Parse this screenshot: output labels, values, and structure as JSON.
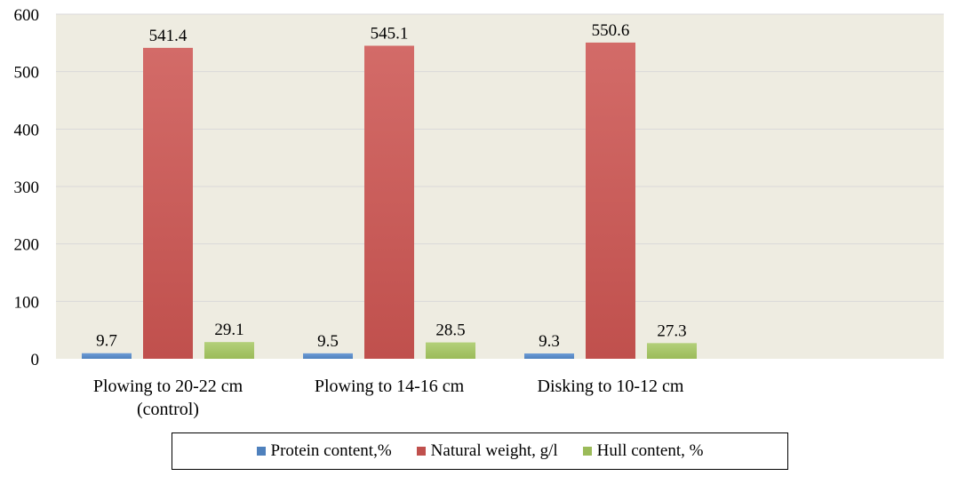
{
  "chart_data": {
    "type": "bar",
    "categories": [
      "Plowing to 20-22 cm (control)",
      "Plowing to 14-16 cm",
      "Disking to 10-12 cm"
    ],
    "category_lines": [
      [
        "Plowing to 20-22 cm",
        "(control)"
      ],
      [
        "Plowing to 14-16 cm"
      ],
      [
        "Disking to 10-12 cm"
      ]
    ],
    "series": [
      {
        "name": "Protein content,%",
        "values": [
          9.7,
          9.5,
          9.3
        ],
        "labels": [
          "9.7",
          "9.5",
          "9.3"
        ],
        "color": "#4f81bd",
        "color_light": "#6d9cd6"
      },
      {
        "name": "Natural weight, g/l",
        "values": [
          541.4,
          545.1,
          550.6
        ],
        "labels": [
          "541.4",
          "545.1",
          "550.6"
        ],
        "color": "#c0504d",
        "color_light": "#d36b68"
      },
      {
        "name": "Hull content, %",
        "values": [
          29.1,
          28.5,
          27.3
        ],
        "labels": [
          "29.1",
          "28.5",
          "27.3"
        ],
        "color": "#9bbb59",
        "color_light": "#b3d07a"
      }
    ],
    "ylim": [
      0,
      600
    ],
    "yticks": [
      0,
      100,
      200,
      300,
      400,
      500,
      600
    ],
    "ytick_labels": [
      "0",
      "100",
      "200",
      "300",
      "400",
      "500",
      "600"
    ],
    "grid": true,
    "plot_background": "#eeece1",
    "gridline_color": "#d9d9d9",
    "legend_position": "bottom",
    "title": "",
    "xlabel": "",
    "ylabel": ""
  }
}
